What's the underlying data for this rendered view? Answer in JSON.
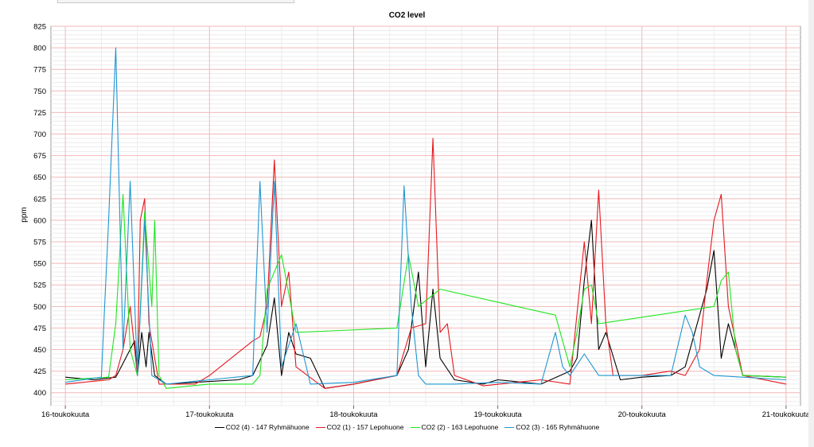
{
  "chart_data": {
    "type": "line",
    "title": "CO2 level",
    "xlabel": "",
    "ylabel": "ppm",
    "ylim": [
      385,
      825
    ],
    "y_ticks": [
      400,
      425,
      450,
      475,
      500,
      525,
      550,
      575,
      600,
      625,
      650,
      675,
      700,
      725,
      750,
      775,
      800,
      825
    ],
    "x_ticks": [
      "16-toukokuuta",
      "17-toukokuuta",
      "18-toukokuuta",
      "19-toukokuuta",
      "20-toukokuuta",
      "21-toukokuuta"
    ],
    "grid": true,
    "legend_position": "bottom",
    "series": [
      {
        "name": "CO2  (4) - 147 Ryhmähuone",
        "color": "#000000",
        "points": [
          [
            0,
            418
          ],
          [
            0.2,
            415
          ],
          [
            0.35,
            418
          ],
          [
            0.48,
            460
          ],
          [
            0.5,
            420
          ],
          [
            0.53,
            470
          ],
          [
            0.56,
            430
          ],
          [
            0.58,
            470
          ],
          [
            0.62,
            420
          ],
          [
            0.7,
            410
          ],
          [
            1,
            413
          ],
          [
            1.2,
            415
          ],
          [
            1.3,
            420
          ],
          [
            1.4,
            455
          ],
          [
            1.45,
            510
          ],
          [
            1.5,
            420
          ],
          [
            1.55,
            470
          ],
          [
            1.6,
            445
          ],
          [
            1.7,
            440
          ],
          [
            1.8,
            405
          ],
          [
            2,
            410
          ],
          [
            2.3,
            420
          ],
          [
            2.38,
            450
          ],
          [
            2.45,
            540
          ],
          [
            2.5,
            430
          ],
          [
            2.55,
            520
          ],
          [
            2.6,
            440
          ],
          [
            2.7,
            415
          ],
          [
            2.9,
            410
          ],
          [
            3,
            415
          ],
          [
            3.3,
            410
          ],
          [
            3.5,
            425
          ],
          [
            3.55,
            440
          ],
          [
            3.6,
            530
          ],
          [
            3.65,
            600
          ],
          [
            3.7,
            450
          ],
          [
            3.75,
            470
          ],
          [
            3.85,
            415
          ],
          [
            4,
            418
          ],
          [
            4.2,
            420
          ],
          [
            4.3,
            430
          ],
          [
            4.45,
            520
          ],
          [
            4.5,
            565
          ],
          [
            4.55,
            440
          ],
          [
            4.6,
            480
          ],
          [
            4.7,
            420
          ],
          [
            5,
            418
          ]
        ]
      },
      {
        "name": "CO2 (1) - 157 Lepohuone",
        "color": "#e4181e",
        "points": [
          [
            0,
            410
          ],
          [
            0.3,
            415
          ],
          [
            0.35,
            420
          ],
          [
            0.4,
            450
          ],
          [
            0.45,
            500
          ],
          [
            0.5,
            420
          ],
          [
            0.52,
            600
          ],
          [
            0.55,
            625
          ],
          [
            0.58,
            480
          ],
          [
            0.6,
            460
          ],
          [
            0.65,
            410
          ],
          [
            0.9,
            410
          ],
          [
            1,
            420
          ],
          [
            1.3,
            460
          ],
          [
            1.35,
            465
          ],
          [
            1.4,
            500
          ],
          [
            1.45,
            670
          ],
          [
            1.5,
            500
          ],
          [
            1.55,
            540
          ],
          [
            1.6,
            430
          ],
          [
            1.8,
            405
          ],
          [
            2,
            410
          ],
          [
            2.3,
            420
          ],
          [
            2.4,
            475
          ],
          [
            2.5,
            480
          ],
          [
            2.55,
            695
          ],
          [
            2.6,
            470
          ],
          [
            2.65,
            480
          ],
          [
            2.7,
            420
          ],
          [
            2.9,
            408
          ],
          [
            3.3,
            415
          ],
          [
            3.5,
            410
          ],
          [
            3.6,
            575
          ],
          [
            3.65,
            480
          ],
          [
            3.7,
            635
          ],
          [
            3.75,
            480
          ],
          [
            3.8,
            420
          ],
          [
            4,
            420
          ],
          [
            4.2,
            425
          ],
          [
            4.3,
            420
          ],
          [
            4.4,
            450
          ],
          [
            4.45,
            530
          ],
          [
            4.5,
            600
          ],
          [
            4.55,
            630
          ],
          [
            4.6,
            500
          ],
          [
            4.65,
            460
          ],
          [
            4.7,
            420
          ],
          [
            5,
            410
          ]
        ]
      },
      {
        "name": "CO2 (2) - 163 Lepohuone",
        "color": "#1ee61e",
        "points": [
          [
            0,
            415
          ],
          [
            0.3,
            418
          ],
          [
            0.35,
            480
          ],
          [
            0.4,
            630
          ],
          [
            0.45,
            450
          ],
          [
            0.5,
            420
          ],
          [
            0.55,
            610
          ],
          [
            0.6,
            500
          ],
          [
            0.62,
            600
          ],
          [
            0.65,
            420
          ],
          [
            0.7,
            405
          ],
          [
            1,
            410
          ],
          [
            1.3,
            410
          ],
          [
            1.35,
            420
          ],
          [
            1.4,
            520
          ],
          [
            1.5,
            560
          ],
          [
            1.6,
            470
          ],
          [
            2.3,
            475
          ],
          [
            2.38,
            560
          ],
          [
            2.45,
            500
          ],
          [
            2.6,
            520
          ],
          [
            3.4,
            490
          ],
          [
            3.5,
            430
          ],
          [
            3.55,
            470
          ],
          [
            3.6,
            520
          ],
          [
            3.65,
            525
          ],
          [
            3.7,
            480
          ],
          [
            4.5,
            500
          ],
          [
            4.55,
            530
          ],
          [
            4.6,
            540
          ],
          [
            4.65,
            450
          ],
          [
            4.7,
            420
          ],
          [
            5,
            418
          ]
        ]
      },
      {
        "name": "CO2 (3) - 165 Ryhmähuone",
        "color": "#1e96d2",
        "points": [
          [
            0,
            412
          ],
          [
            0.25,
            418
          ],
          [
            0.3,
            600
          ],
          [
            0.35,
            800
          ],
          [
            0.4,
            450
          ],
          [
            0.45,
            645
          ],
          [
            0.5,
            420
          ],
          [
            0.55,
            600
          ],
          [
            0.6,
            420
          ],
          [
            0.7,
            410
          ],
          [
            1,
            415
          ],
          [
            1.3,
            420
          ],
          [
            1.35,
            645
          ],
          [
            1.4,
            470
          ],
          [
            1.45,
            645
          ],
          [
            1.5,
            430
          ],
          [
            1.6,
            480
          ],
          [
            1.7,
            410
          ],
          [
            2,
            412
          ],
          [
            2.3,
            420
          ],
          [
            2.35,
            640
          ],
          [
            2.4,
            500
          ],
          [
            2.45,
            420
          ],
          [
            2.5,
            410
          ],
          [
            2.7,
            410
          ],
          [
            3,
            412
          ],
          [
            3.3,
            410
          ],
          [
            3.4,
            470
          ],
          [
            3.45,
            430
          ],
          [
            3.5,
            420
          ],
          [
            3.6,
            445
          ],
          [
            3.7,
            420
          ],
          [
            4,
            420
          ],
          [
            4.2,
            420
          ],
          [
            4.3,
            490
          ],
          [
            4.35,
            470
          ],
          [
            4.4,
            430
          ],
          [
            4.5,
            420
          ],
          [
            5,
            415
          ]
        ]
      }
    ]
  }
}
